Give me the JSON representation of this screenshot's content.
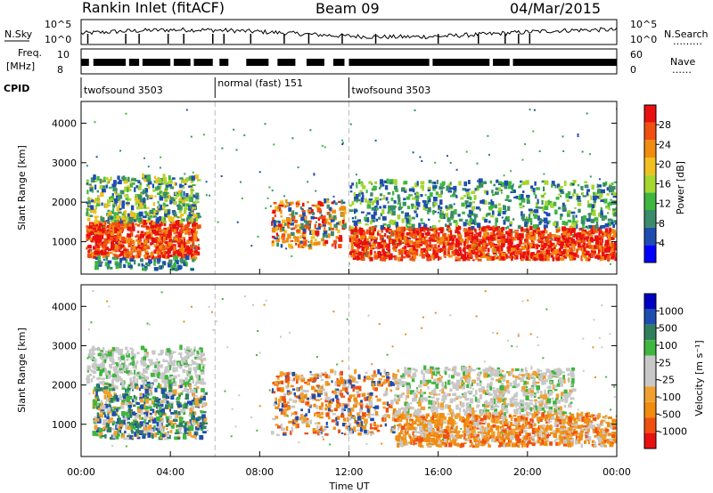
{
  "header": {
    "station": "Rankin Inlet (fitACF)",
    "beam": "Beam 09",
    "date": "04/Mar/2015"
  },
  "strip_labels": {
    "nsky": "N.Sky",
    "nsearch": "N.Search",
    "nsearch_dots": "………",
    "freq_line1": "Freq.",
    "freq_line2": "[MHz]",
    "nave": "Nave",
    "nave_dots": "……",
    "cpid": "CPID"
  },
  "strip_ticks": {
    "noise_left": [
      "10^5",
      "10^0"
    ],
    "noise_right": [
      "10^5",
      "10^0"
    ],
    "freq_left": [
      "10",
      "8"
    ],
    "nave_right": [
      "60",
      "0"
    ]
  },
  "cpid_segments": [
    {
      "name": "twofsound",
      "id": "3503",
      "start_h": 0.0,
      "end_h": 6.0
    },
    {
      "name": "normal (fast)",
      "id": "151",
      "start_h": 6.0,
      "end_h": 12.0
    },
    {
      "name": "twofsound",
      "id": "3503",
      "start_h": 12.0,
      "end_h": 24.0
    }
  ],
  "colors": {
    "power": [
      "#0000ff",
      "#1e4db0",
      "#3a8c6a",
      "#3fb63f",
      "#a6d630",
      "#f0c020",
      "#f08c10",
      "#f05010",
      "#e81010"
    ],
    "velocity": [
      "#e81010",
      "#f05010",
      "#f08c10",
      "#f0a030",
      "#c8c8c8",
      "#c8c8c8",
      "#3fb63f",
      "#2f7f5f",
      "#1e4db0",
      "#0000c0"
    ]
  },
  "chart_data": [
    {
      "type": "heatmap",
      "panel": "power",
      "xlabel": "",
      "ylabel": "Slant Range [km]",
      "xlim": [
        0,
        24
      ],
      "ylim": [
        180,
        4550
      ],
      "y_ticks": [
        1000,
        2000,
        3000,
        4000
      ],
      "colorbar": {
        "label": "Power [dB]",
        "ticks": [
          "4",
          "8",
          "12",
          "16",
          "20",
          "24",
          "28"
        ],
        "range": [
          0,
          32
        ]
      },
      "echo_regions": [
        {
          "x": [
            0.2,
            5.2
          ],
          "y": [
            500,
            1500
          ],
          "value": "26-30 dB"
        },
        {
          "x": [
            0.2,
            5.2
          ],
          "y": [
            1500,
            2600
          ],
          "value": "8-16 dB"
        },
        {
          "x": [
            8.5,
            11.8
          ],
          "y": [
            800,
            2000
          ],
          "value": "20-28 dB"
        },
        {
          "x": [
            12.0,
            24.0
          ],
          "y": [
            500,
            1300
          ],
          "value": "24-30 dB"
        },
        {
          "x": [
            12.0,
            24.0
          ],
          "y": [
            1300,
            2500
          ],
          "value": "4-14 dB"
        }
      ]
    },
    {
      "type": "heatmap",
      "panel": "velocity",
      "xlabel": "Time UT",
      "ylabel": "Slant Range [km]",
      "xlim": [
        0,
        24
      ],
      "ylim": [
        180,
        4550
      ],
      "x_ticks": [
        "00:00",
        "04:00",
        "08:00",
        "12:00",
        "16:00",
        "20:00",
        "00:00"
      ],
      "y_ticks": [
        1000,
        2000,
        3000,
        4000
      ],
      "colorbar": {
        "label": "Velocity [m s⁻¹]",
        "ticks": [
          "1000",
          "500",
          "100",
          "25",
          "-25",
          "-100",
          "-500",
          "-1000"
        ]
      },
      "echo_regions": [
        {
          "x": [
            0.5,
            5.5
          ],
          "y": [
            600,
            2000
          ],
          "value": "25 to 500 m/s"
        },
        {
          "x": [
            0.2,
            5.5
          ],
          "y": [
            2000,
            2900
          ],
          "value": "-25 to 25 m/s"
        },
        {
          "x": [
            8.5,
            14.0
          ],
          "y": [
            700,
            2300
          ],
          "value": "-100 to -500 m/s"
        },
        {
          "x": [
            14.0,
            24.0
          ],
          "y": [
            400,
            1200
          ],
          "value": "-100 to -500 m/s"
        },
        {
          "x": [
            14.0,
            22.0
          ],
          "y": [
            1200,
            2400
          ],
          "value": "-25 to 25 m/s"
        }
      ]
    }
  ]
}
